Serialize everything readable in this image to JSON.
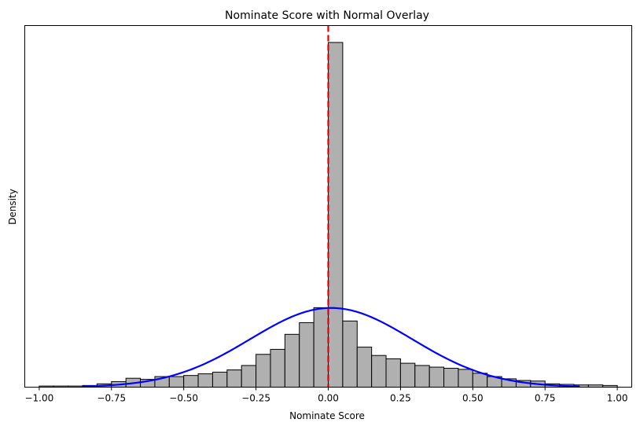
{
  "chart_data": {
    "type": "bar",
    "title": "Nominate Score with Normal Overlay",
    "xlabel": "Nominate Score",
    "ylabel": "Density",
    "xlim": [
      -1.05,
      1.05
    ],
    "ylim": [
      0,
      6.2
    ],
    "xticks": [
      -1.0,
      -0.75,
      -0.5,
      -0.25,
      0.0,
      0.25,
      0.5,
      0.75,
      1.0
    ],
    "xtick_labels": [
      "−1.00",
      "−0.75",
      "−0.50",
      "−0.25",
      "0.00",
      "0.25",
      "0.50",
      "0.75",
      "1.00"
    ],
    "yticks_shown": false,
    "grid": false,
    "bin_width": 0.05,
    "bin_edges_start": -1.0,
    "histogram_density": [
      0.02,
      0.02,
      0.02,
      0.03,
      0.06,
      0.1,
      0.16,
      0.14,
      0.19,
      0.19,
      0.21,
      0.24,
      0.27,
      0.31,
      0.39,
      0.59,
      0.68,
      0.95,
      1.16,
      1.43,
      6.2,
      1.19,
      0.72,
      0.57,
      0.51,
      0.43,
      0.39,
      0.36,
      0.34,
      0.32,
      0.25,
      0.19,
      0.15,
      0.12,
      0.11,
      0.06,
      0.05,
      0.04,
      0.04,
      0.03
    ],
    "histogram_color": "#b0b0b0",
    "normal_curve": {
      "mean": 0.01,
      "std": 0.28,
      "x_range": [
        -0.85,
        0.87
      ],
      "color": "#0000ff"
    },
    "vline": {
      "x": 0.0,
      "color": "#e00000",
      "style": "dashed"
    }
  }
}
